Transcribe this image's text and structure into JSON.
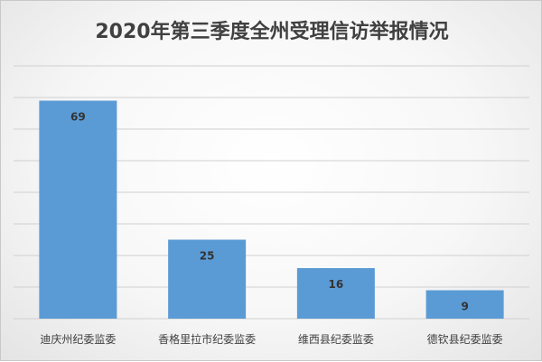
{
  "chart_data": {
    "type": "bar",
    "title": "2020年第三季度全州受理信访举报情况",
    "categories": [
      "迪庆州纪委监委",
      "香格里拉市纪委监委",
      "维西县纪委监委",
      "德钦县纪委监委"
    ],
    "values": [
      69,
      25,
      16,
      9
    ],
    "data_labels": [
      "69",
      "25",
      "16",
      "9"
    ],
    "ylim": [
      0,
      80
    ],
    "grid": true,
    "legend": "none",
    "bar_color": "#5b9bd5",
    "grid_color": "#d0d0d0"
  }
}
